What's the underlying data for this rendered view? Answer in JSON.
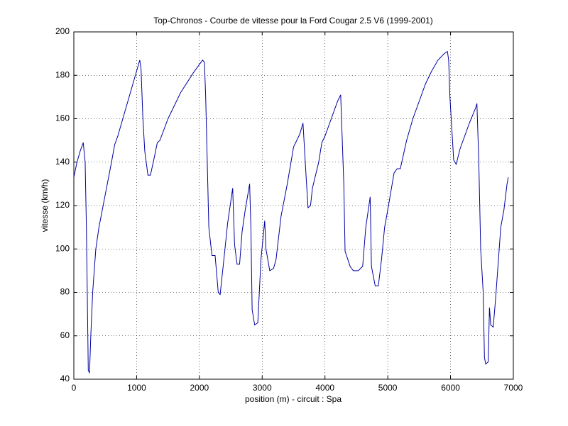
{
  "chart_data": {
    "type": "line",
    "title": "Top-Chronos - Courbe de vitesse pour la Ford Cougar 2.5 V6 (1999-2001)",
    "xlabel": "position (m) - circuit : Spa",
    "ylabel": "vitesse (km/h)",
    "x": [
      0,
      50,
      100,
      150,
      180,
      200,
      230,
      250,
      270,
      300,
      350,
      400,
      500,
      600,
      650,
      700,
      800,
      900,
      1000,
      1050,
      1070,
      1100,
      1130,
      1180,
      1220,
      1280,
      1330,
      1370,
      1500,
      1700,
      1900,
      2050,
      2080,
      2100,
      2150,
      2200,
      2250,
      2300,
      2330,
      2400,
      2450,
      2500,
      2530,
      2560,
      2600,
      2640,
      2680,
      2730,
      2800,
      2820,
      2840,
      2880,
      2930,
      2980,
      3040,
      3060,
      3120,
      3180,
      3220,
      3300,
      3400,
      3500,
      3550,
      3600,
      3650,
      3700,
      3730,
      3770,
      3800,
      3900,
      3950,
      4000,
      4100,
      4200,
      4250,
      4300,
      4320,
      4400,
      4450,
      4530,
      4600,
      4650,
      4720,
      4740,
      4800,
      4850,
      4900,
      4950,
      5000,
      5100,
      5150,
      5200,
      5300,
      5400,
      5500,
      5600,
      5700,
      5800,
      5900,
      5950,
      5970,
      5990,
      6050,
      6090,
      6150,
      6200,
      6300,
      6400,
      6420,
      6450,
      6480,
      6520,
      6540,
      6560,
      6600,
      6620,
      6640,
      6680,
      6720,
      6800,
      6850,
      6900,
      6920
    ],
    "values": [
      133,
      140,
      145,
      149,
      140,
      110,
      44,
      43,
      60,
      80,
      100,
      110,
      125,
      140,
      148,
      152,
      162,
      172,
      182,
      187,
      183,
      160,
      145,
      134,
      134,
      142,
      149,
      150,
      160,
      172,
      181,
      187,
      186,
      170,
      110,
      97,
      97,
      80,
      79,
      98,
      112,
      122,
      128,
      102,
      93,
      93,
      108,
      118,
      130,
      110,
      72,
      65,
      66,
      95,
      113,
      100,
      90,
      91,
      95,
      115,
      130,
      147,
      150,
      153,
      158,
      133,
      119,
      120,
      128,
      140,
      149,
      152,
      160,
      168,
      171,
      130,
      99,
      92,
      90,
      90,
      92,
      110,
      124,
      92,
      83,
      83,
      95,
      110,
      118,
      135,
      137,
      137,
      150,
      160,
      168,
      176,
      182,
      187,
      190,
      191,
      187,
      170,
      141,
      139,
      146,
      150,
      158,
      165,
      167,
      140,
      100,
      80,
      50,
      47,
      48,
      73,
      65,
      64,
      78,
      110,
      118,
      130,
      133
    ],
    "color": "#0000a0",
    "xlim": [
      0,
      7000
    ],
    "xticks": [
      0,
      1000,
      2000,
      3000,
      4000,
      5000,
      6000,
      7000
    ],
    "ylim": [
      40,
      200
    ],
    "yticks": [
      40,
      60,
      80,
      100,
      120,
      140,
      160,
      180,
      200
    ],
    "grid": true
  }
}
